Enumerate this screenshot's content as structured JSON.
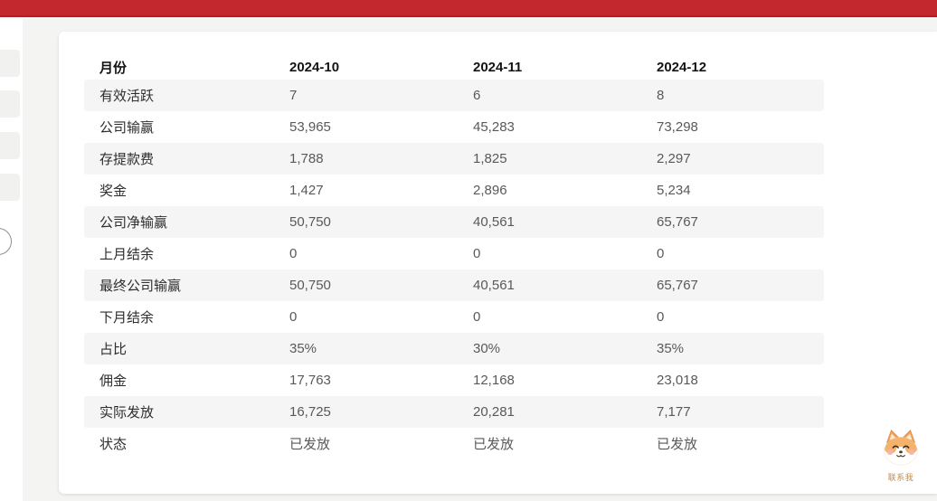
{
  "topbar": {},
  "table": {
    "headers": [
      "月份",
      "2024-10",
      "2024-11",
      "2024-12"
    ],
    "rows": [
      {
        "label": "有效活跃",
        "values": [
          "7",
          "6",
          "8"
        ]
      },
      {
        "label": "公司输赢",
        "values": [
          "53,965",
          "45,283",
          "73,298"
        ]
      },
      {
        "label": "存提款费",
        "values": [
          "1,788",
          "1,825",
          "2,297"
        ]
      },
      {
        "label": "奖金",
        "values": [
          "1,427",
          "2,896",
          "5,234"
        ]
      },
      {
        "label": "公司净输赢",
        "values": [
          "50,750",
          "40,561",
          "65,767"
        ]
      },
      {
        "label": "上月结余",
        "values": [
          "0",
          "0",
          "0"
        ]
      },
      {
        "label": "最终公司输赢",
        "values": [
          "50,750",
          "40,561",
          "65,767"
        ]
      },
      {
        "label": "下月结余",
        "values": [
          "0",
          "0",
          "0"
        ]
      },
      {
        "label": "占比",
        "values": [
          "35%",
          "30%",
          "35%"
        ]
      },
      {
        "label": "佣金",
        "values": [
          "17,763",
          "12,168",
          "23,018"
        ]
      },
      {
        "label": "实际发放",
        "values": [
          "16,725",
          "20,281",
          "7,177"
        ]
      },
      {
        "label": "状态",
        "values": [
          "已发放",
          "已发放",
          "已发放"
        ]
      }
    ]
  },
  "mascot": {
    "icon": "shiba-dog-icon",
    "label": "联系我"
  },
  "colors": {
    "topbar": "#c3282e",
    "topbar_edge": "#a62428",
    "page_bg": "#f4f4f3",
    "stripe": "#f5f5f5",
    "header_text": "#141414",
    "label_text": "#2d2d2d",
    "value_text": "#595959",
    "mascot_text": "#bf8a4e"
  }
}
